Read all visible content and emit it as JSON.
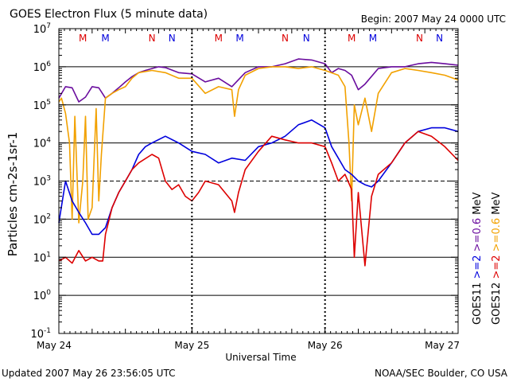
{
  "chart_data": {
    "type": "line",
    "title": "GOES Electron Flux (5 minute data)",
    "begin_label": "Begin: 2007 May 24 0000 UTC",
    "xlabel": "Universal Time",
    "ylabel": "Particles cm-2s-1sr-1",
    "y_scale": "log",
    "ylim": [
      0.1,
      10000000
    ],
    "grid": true,
    "y_ticks": [
      {
        "base": "10",
        "exp": "7",
        "value": 10000000
      },
      {
        "base": "10",
        "exp": "6",
        "value": 1000000
      },
      {
        "base": "10",
        "exp": "5",
        "value": 100000
      },
      {
        "base": "10",
        "exp": "4",
        "value": 10000
      },
      {
        "base": "10",
        "exp": "3",
        "value": 1000
      },
      {
        "base": "10",
        "exp": "2",
        "value": 100
      },
      {
        "base": "10",
        "exp": "1",
        "value": 10
      },
      {
        "base": "10",
        "exp": "0",
        "value": 1
      },
      {
        "base": "10",
        "exp": "-1",
        "value": 0.1
      }
    ],
    "x_ticks": [
      {
        "label": "May 24",
        "day": 0
      },
      {
        "label": "May 25",
        "day": 1
      },
      {
        "label": "May 26",
        "day": 2
      },
      {
        "label": "May 27",
        "day": 3
      }
    ],
    "markers": [
      {
        "label": "M",
        "day": 0.18,
        "color": "#dd0000"
      },
      {
        "label": "M",
        "day": 0.35,
        "color": "#0000dd"
      },
      {
        "label": "N",
        "day": 0.7,
        "color": "#dd0000"
      },
      {
        "label": "N",
        "day": 0.85,
        "color": "#0000dd"
      },
      {
        "label": "M",
        "day": 1.2,
        "color": "#dd0000"
      },
      {
        "label": "M",
        "day": 1.36,
        "color": "#0000dd"
      },
      {
        "label": "N",
        "day": 1.7,
        "color": "#dd0000"
      },
      {
        "label": "N",
        "day": 1.86,
        "color": "#0000dd"
      },
      {
        "label": "M",
        "day": 2.2,
        "color": "#dd0000"
      },
      {
        "label": "M",
        "day": 2.36,
        "color": "#0000dd"
      },
      {
        "label": "N",
        "day": 2.71,
        "color": "#dd0000"
      },
      {
        "label": "N",
        "day": 2.86,
        "color": "#0000dd"
      }
    ],
    "legend": {
      "placement": "right",
      "groups": [
        {
          "sat": "GOES11",
          "items": [
            {
              "label": ">=2",
              "color": "#0000dd"
            },
            {
              "label": ">=0.6",
              "color": "#6a0d9e"
            }
          ],
          "unit": "MeV"
        },
        {
          "sat": "GOES12",
          "items": [
            {
              "label": ">=2",
              "color": "#dd0000"
            },
            {
              "label": ">=0.6",
              "color": "#f2a100"
            }
          ],
          "unit": "MeV"
        }
      ]
    },
    "series": [
      {
        "color": "#6a0d9e",
        "day": [
          0,
          0.05,
          0.1,
          0.15,
          0.2,
          0.25,
          0.3,
          0.35,
          0.4,
          0.45,
          0.5,
          0.55,
          0.6,
          0.65,
          0.7,
          0.75,
          0.8,
          0.9,
          1.0,
          1.1,
          1.2,
          1.3,
          1.4,
          1.5,
          1.6,
          1.7,
          1.8,
          1.9,
          2.0,
          2.05,
          2.1,
          2.15,
          2.2,
          2.25,
          2.3,
          2.4,
          2.5,
          2.6,
          2.7,
          2.8,
          2.9,
          3.0
        ],
        "value": [
          150000,
          300000,
          280000,
          120000,
          160000,
          300000,
          280000,
          150000,
          200000,
          280000,
          400000,
          550000,
          700000,
          800000,
          900000,
          1000000,
          950000,
          700000,
          650000,
          400000,
          500000,
          300000,
          700000,
          1000000,
          1000000,
          1200000,
          1600000,
          1500000,
          1200000,
          700000,
          900000,
          800000,
          600000,
          250000,
          350000,
          900000,
          1000000,
          1000000,
          1200000,
          1300000,
          1200000,
          1100000
        ]
      },
      {
        "color": "#f2a100",
        "day": [
          0,
          0.02,
          0.05,
          0.08,
          0.1,
          0.12,
          0.15,
          0.18,
          0.2,
          0.22,
          0.25,
          0.28,
          0.3,
          0.32,
          0.35,
          0.4,
          0.45,
          0.5,
          0.55,
          0.6,
          0.7,
          0.8,
          0.9,
          1.0,
          1.1,
          1.2,
          1.3,
          1.32,
          1.35,
          1.4,
          1.5,
          1.6,
          1.7,
          1.8,
          1.9,
          2.0,
          2.1,
          2.15,
          2.18,
          2.2,
          2.22,
          2.25,
          2.3,
          2.35,
          2.4,
          2.5,
          2.6,
          2.7,
          2.8,
          2.9,
          3.0
        ],
        "value": [
          120000,
          150000,
          60000,
          10000,
          100,
          50000,
          80,
          1000,
          50000,
          100,
          200,
          80000,
          300,
          5000,
          150000,
          200000,
          250000,
          300000,
          500000,
          700000,
          800000,
          700000,
          500000,
          500000,
          200000,
          300000,
          250000,
          50000,
          250000,
          600000,
          900000,
          1000000,
          1000000,
          900000,
          1000000,
          800000,
          600000,
          300000,
          10000,
          300,
          100000,
          30000,
          150000,
          20000,
          200000,
          700000,
          900000,
          800000,
          700000,
          600000,
          450000
        ]
      },
      {
        "color": "#0000dd",
        "day": [
          0,
          0.05,
          0.1,
          0.15,
          0.2,
          0.25,
          0.3,
          0.35,
          0.4,
          0.45,
          0.5,
          0.55,
          0.6,
          0.65,
          0.7,
          0.8,
          0.9,
          1.0,
          1.1,
          1.2,
          1.3,
          1.4,
          1.5,
          1.6,
          1.7,
          1.8,
          1.9,
          2.0,
          2.05,
          2.1,
          2.15,
          2.2,
          2.25,
          2.3,
          2.35,
          2.4,
          2.5,
          2.6,
          2.7,
          2.8,
          2.9,
          3.0
        ],
        "value": [
          80,
          1000,
          300,
          150,
          80,
          40,
          40,
          60,
          200,
          500,
          1000,
          2000,
          5000,
          8000,
          10000,
          15000,
          10000,
          6000,
          5000,
          3000,
          4000,
          3500,
          8000,
          10000,
          15000,
          30000,
          40000,
          25000,
          8000,
          4000,
          2000,
          1500,
          1000,
          800,
          700,
          1000,
          3000,
          10000,
          20000,
          25000,
          25000,
          20000
        ]
      },
      {
        "color": "#dd0000",
        "day": [
          0,
          0.05,
          0.1,
          0.15,
          0.2,
          0.25,
          0.3,
          0.33,
          0.35,
          0.4,
          0.45,
          0.5,
          0.55,
          0.6,
          0.7,
          0.75,
          0.8,
          0.85,
          0.9,
          0.95,
          1.0,
          1.05,
          1.1,
          1.2,
          1.3,
          1.32,
          1.35,
          1.4,
          1.5,
          1.6,
          1.7,
          1.8,
          1.9,
          2.0,
          2.05,
          2.1,
          2.15,
          2.2,
          2.22,
          2.25,
          2.3,
          2.35,
          2.4,
          2.5,
          2.6,
          2.7,
          2.8,
          2.9,
          3.0
        ],
        "value": [
          8,
          10,
          7,
          15,
          8,
          10,
          8,
          8,
          40,
          200,
          500,
          1000,
          2000,
          3000,
          5000,
          4000,
          1000,
          600,
          800,
          400,
          300,
          500,
          1000,
          800,
          300,
          150,
          500,
          2000,
          6000,
          15000,
          12000,
          10000,
          10000,
          8000,
          3000,
          1000,
          1500,
          600,
          10,
          500,
          6,
          400,
          1500,
          3000,
          10000,
          20000,
          15000,
          8000,
          3500
        ]
      }
    ]
  },
  "footer": {
    "updated": "Updated 2007 May 26 23:56:05 UTC",
    "credit": "NOAA/SEC Boulder, CO USA"
  }
}
